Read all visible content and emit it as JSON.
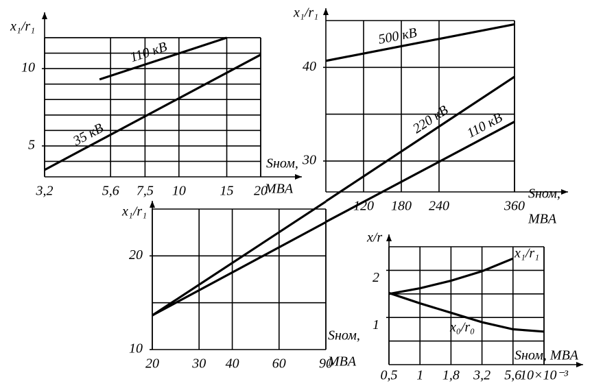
{
  "chart_data": [
    {
      "type": "line",
      "ylabel": "x₁/r₁",
      "xlabel": "Sном,",
      "xunit": "MBA",
      "xlog": true,
      "xlim": [
        3.2,
        20
      ],
      "xticks": [
        {
          "value": 3.2,
          "label": "3,2"
        },
        {
          "value": 5.6,
          "label": "5,6"
        },
        {
          "value": 7.5,
          "label": "7,5"
        },
        10,
        15,
        20
      ],
      "ylim": [
        3,
        12
      ],
      "yticks": [
        5,
        10
      ],
      "ygrid": [
        4,
        5,
        6,
        7,
        8,
        9,
        10,
        11,
        12
      ],
      "series": [
        {
          "name": "35 кВ",
          "color": "#000000",
          "x": [
            3.2,
            20
          ],
          "values": [
            3.45,
            10.9
          ]
        },
        {
          "name": "110 кВ",
          "color": "#000000",
          "x": [
            5.1,
            15
          ],
          "values": [
            9.3,
            12
          ]
        }
      ]
    },
    {
      "type": "line",
      "ylabel": "x₁/r₁",
      "xlabel": "Sном,",
      "xunit": "MBA",
      "xlog": false,
      "xlim": [
        60,
        360
      ],
      "xticks": [
        120,
        180,
        240,
        360
      ],
      "ylim": [
        26.7,
        45
      ],
      "yticks": [
        30,
        40
      ],
      "ygrid": [
        30,
        35,
        40
      ],
      "series": [
        {
          "name": "500 кВ",
          "color": "#000000",
          "x": [
            60,
            360
          ],
          "values": [
            40.7,
            44.6
          ]
        },
        {
          "name": "220 кВ",
          "color": "#000000",
          "x": [
            60,
            360
          ],
          "values": [
            25.7,
            39.0
          ]
        },
        {
          "name": "110 кВ",
          "color": "#000000",
          "x": [
            60,
            360
          ],
          "values": [
            23.5,
            34.2
          ]
        }
      ]
    },
    {
      "type": "line",
      "ylabel": "x₁/r₁",
      "xlabel": "Sном,",
      "xunit": "MBA",
      "xlog": true,
      "xlim": [
        20,
        90
      ],
      "xticks": [
        20,
        30,
        40,
        60,
        90
      ],
      "ylim": [
        10,
        25
      ],
      "yticks": [
        10,
        20
      ],
      "ygrid": [
        15,
        20
      ],
      "series": [
        {
          "color": "#000000",
          "x": [
            20,
            90
          ],
          "values": [
            13.65,
            25.8
          ]
        },
        {
          "color": "#000000",
          "x": [
            20,
            90
          ],
          "values": [
            13.65,
            23.6
          ]
        }
      ]
    },
    {
      "type": "line",
      "ylabel": "x/r",
      "xlabel": "Sном, MBA",
      "categories": [
        "0,5",
        "1",
        "1,8",
        "3,2",
        "5,6",
        "10×10⁻³"
      ],
      "ylim": [
        0,
        2.5
      ],
      "yticks": [
        1,
        2
      ],
      "ygrid": [
        0.5,
        1,
        1.5,
        2
      ],
      "series": [
        {
          "name": "x₁/r₁",
          "color": "#000000",
          "values": [
            1.5,
            1.62,
            1.78,
            1.98,
            2.25,
            null
          ]
        },
        {
          "name": "x₀/r₀",
          "color": "#000000",
          "values": [
            1.52,
            1.3,
            1.1,
            0.9,
            0.75,
            0.7
          ]
        }
      ]
    }
  ]
}
